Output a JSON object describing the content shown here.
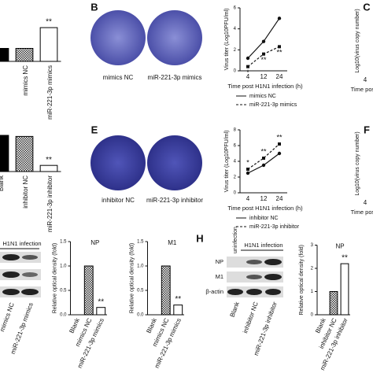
{
  "panel_a": {
    "type": "bar",
    "categories": [
      null,
      "mimics NC",
      "miR-221-3p mimics"
    ],
    "values": [
      1,
      1,
      2.6
    ],
    "ylim": [
      0,
      3
    ],
    "annotation": "**"
  },
  "panel_b": {
    "label": "B",
    "images": [
      "mimics NC",
      "miR-221-3p mimics"
    ],
    "chart": {
      "type": "line",
      "ylabel": "Virus titer (Log10PFU/ml)",
      "xlabel": "Time post H1N1 infection (h)",
      "categories": [
        "4",
        "12",
        "24"
      ],
      "ylim": [
        0,
        6
      ],
      "yticks": [
        0,
        2,
        4,
        6
      ],
      "series": [
        {
          "name": "mimics NC",
          "color": "#111111",
          "values": [
            1.2,
            2.8,
            5.0
          ]
        },
        {
          "name": "miR-221-3p mimics",
          "color": "#111111",
          "dashed": true,
          "values": [
            0.4,
            1.6,
            2.3
          ]
        }
      ],
      "annotations": [
        "*",
        "**",
        "**"
      ]
    }
  },
  "panel_c": {
    "label": "C",
    "ylabel": "Log10(virus copy number)",
    "xlabel": "Time post",
    "tick": "4"
  },
  "panel_d": {
    "type": "bar",
    "categories": [
      "Blank",
      "inhibitor NC",
      "miR-221-3p inhibitor"
    ],
    "values": [
      1,
      0.97,
      0.17
    ],
    "ylim": [
      0,
      1.2
    ],
    "annotation": "**"
  },
  "panel_e": {
    "label": "E",
    "images": [
      "inhibitor NC",
      "miR-221-3p inhibitor"
    ],
    "chart": {
      "type": "line",
      "ylabel": "Virus titer (Log10PFU/ml)",
      "xlabel": "Time post H1N1 infection (h)",
      "categories": [
        "4",
        "12",
        "24"
      ],
      "ylim": [
        0,
        8
      ],
      "yticks": [
        0,
        2,
        4,
        6,
        8
      ],
      "series": [
        {
          "name": "inhibitor NC",
          "color": "#111111",
          "values": [
            2.5,
            3.5,
            5.0
          ]
        },
        {
          "name": "miR-221-3p inhibitor",
          "color": "#111111",
          "dashed": true,
          "values": [
            3.0,
            4.4,
            6.2
          ]
        }
      ],
      "annotations": [
        "*",
        "**",
        "**"
      ]
    }
  },
  "panel_f": {
    "label": "F",
    "ylabel": "Log10(virus copy number)",
    "xlabel": "Time post",
    "tick": "4"
  },
  "panel_g": {
    "blot_title": "H1N1 infection",
    "lanes": [
      "mimics NC",
      "miR-221-3p mimics"
    ],
    "charts": [
      {
        "type": "bar",
        "title": "NP",
        "ylabel": "Relative optical density (fold)",
        "categories": [
          "Blank",
          "mimics NC",
          "miR-221-3p mimics"
        ],
        "values": [
          0,
          1.0,
          0.15
        ],
        "ylim": [
          0,
          1.5
        ],
        "yticks": [
          {
            "value": 0,
            "label": "0.0"
          },
          {
            "value": 0.5,
            "label": "0.5"
          },
          {
            "value": 1,
            "label": "1.0"
          },
          {
            "value": 1.5,
            "label": "1.5"
          }
        ],
        "annotation": "**"
      },
      {
        "type": "bar",
        "title": "M1",
        "ylabel": "Relative optical density (fold)",
        "categories": [
          "Blank",
          "mimics NC",
          "miR-221-3p mimics"
        ],
        "values": [
          0,
          1.0,
          0.2
        ],
        "ylim": [
          0,
          1.5
        ],
        "yticks": [
          {
            "value": 0,
            "label": "0.0"
          },
          {
            "value": 0.5,
            "label": "0.5"
          },
          {
            "value": 1,
            "label": "1.0"
          },
          {
            "value": 1.5,
            "label": "1.5"
          }
        ],
        "annotation": "**"
      }
    ]
  },
  "panel_h": {
    "label": "H",
    "uninfected": "uninfection",
    "blot_title": "H1N1 infection",
    "rows": [
      "NP",
      "M1",
      "β-actin"
    ],
    "lanes": [
      "Blank",
      "inhibitor NC",
      "miR-221-3p inhibitor"
    ],
    "chart": {
      "type": "bar",
      "title": "NP",
      "ylabel": "Relative optical density (fold)",
      "categories": [
        "Blank",
        "inhibitor NC",
        "miR-221-3p inhibitor"
      ],
      "values": [
        0,
        1.0,
        2.2
      ],
      "ylim": [
        0,
        3
      ],
      "yticks": [
        0,
        1,
        2,
        3
      ],
      "annotation": "**"
    }
  }
}
